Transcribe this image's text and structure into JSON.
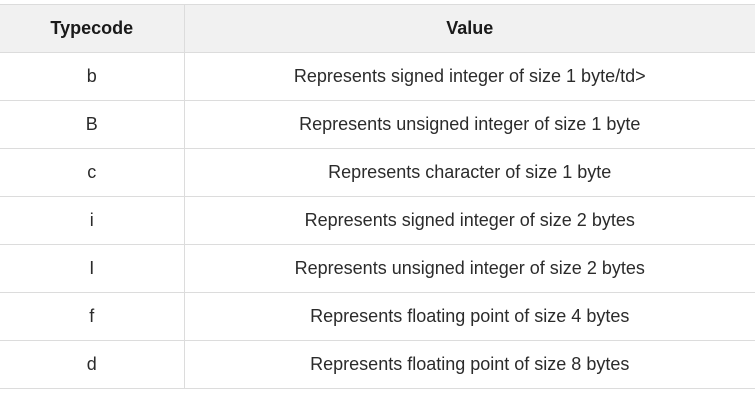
{
  "table": {
    "headers": [
      "Typecode",
      "Value"
    ],
    "rows": [
      [
        "b",
        "Represents signed integer of size 1 byte/td>"
      ],
      [
        "B",
        "Represents unsigned integer of size 1 byte"
      ],
      [
        "c",
        "Represents character of size 1 byte"
      ],
      [
        "i",
        "Represents signed integer of size 2 bytes"
      ],
      [
        "I",
        "Represents unsigned integer of size 2 bytes"
      ],
      [
        "f",
        "Represents floating point of size 4 bytes"
      ],
      [
        "d",
        "Represents floating point of size 8 bytes"
      ]
    ]
  }
}
